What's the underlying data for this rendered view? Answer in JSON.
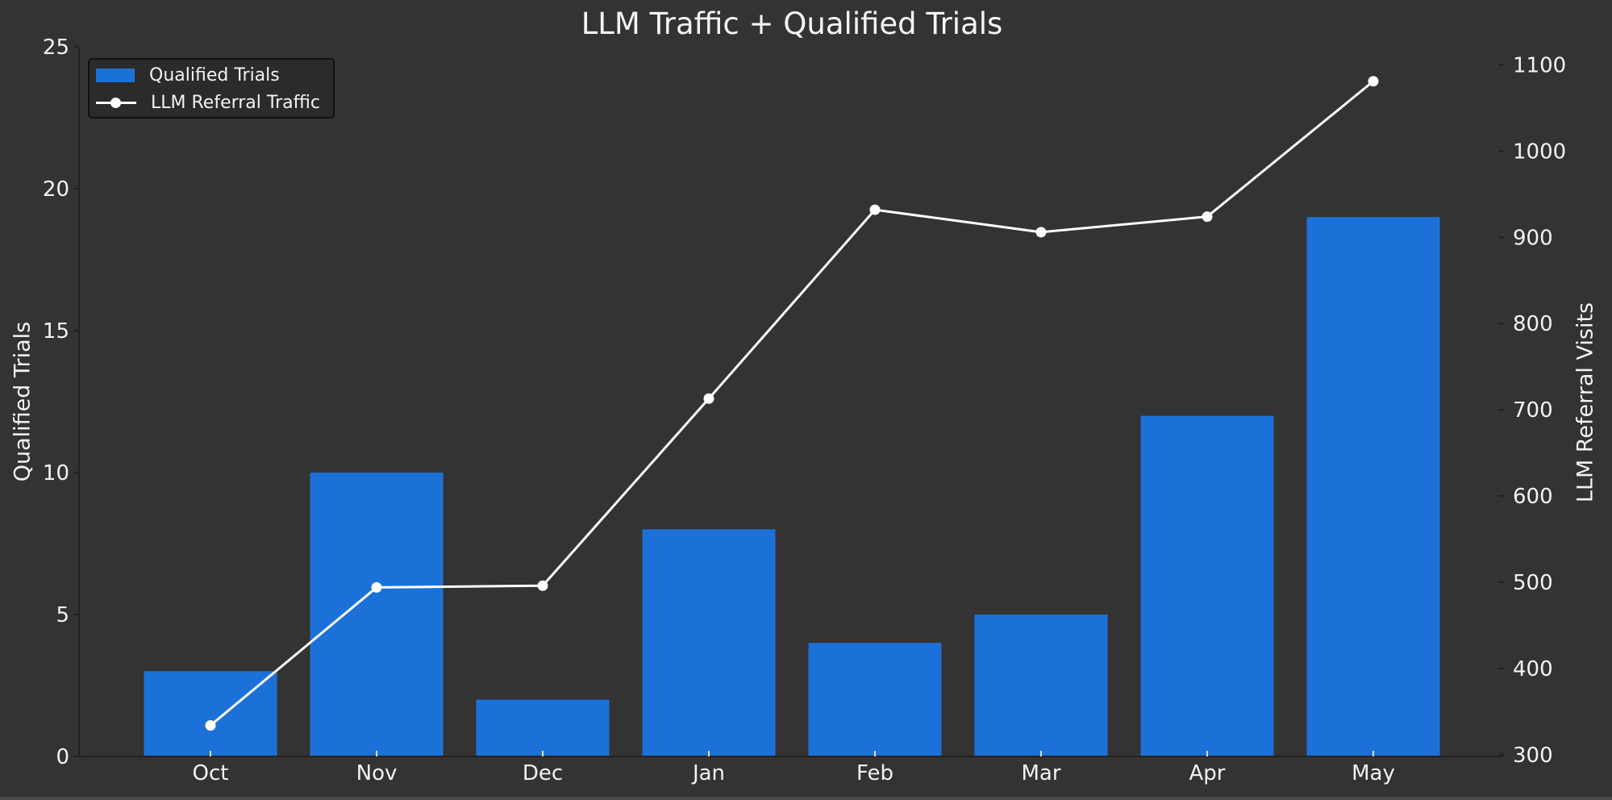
{
  "chart_data": {
    "type": "bar+line",
    "title": "LLM Traffic + Qualified Trials",
    "categories": [
      "Oct",
      "Nov",
      "Dec",
      "Jan",
      "Feb",
      "Mar",
      "Apr",
      "May"
    ],
    "series": [
      {
        "name": "Qualified Trials",
        "type": "bar",
        "axis": "left",
        "color": "#1c71d8",
        "values": [
          3,
          10,
          2,
          8,
          4,
          5,
          12,
          19
        ]
      },
      {
        "name": "LLM Referral Traffic",
        "type": "line",
        "axis": "right",
        "color": "#ffffff",
        "marker": "circle",
        "values": [
          334,
          494,
          496,
          713,
          932,
          906,
          924,
          1081
        ]
      }
    ],
    "xlabel": "",
    "ylabel_left": "Qualified Trials",
    "ylabel_right": "LLM Referral Visits",
    "ylim_left": [
      0,
      25
    ],
    "ylim_right": [
      298,
      1121
    ],
    "yticks_left": [
      0,
      5,
      10,
      15,
      20,
      25
    ],
    "yticks_right": [
      300,
      400,
      500,
      600,
      700,
      800,
      900,
      1000,
      1100
    ],
    "grid": false,
    "legend_position": "upper left",
    "background": "#333333"
  },
  "legend": {
    "items": [
      {
        "label": "Qualified Trials"
      },
      {
        "label": "LLM Referral Traffic"
      }
    ]
  }
}
